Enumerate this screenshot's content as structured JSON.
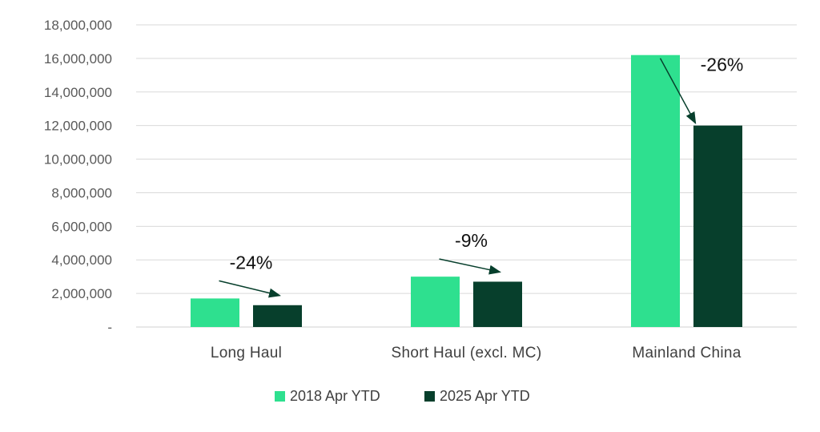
{
  "chart_data": {
    "type": "bar",
    "categories": [
      "Long Haul",
      "Short Haul (excl. MC)",
      "Mainland China"
    ],
    "series": [
      {
        "name": "2018 Apr YTD",
        "color": "#2ee08f",
        "values": [
          1700000,
          3000000,
          16200000
        ]
      },
      {
        "name": "2025 Apr YTD",
        "color": "#073f2c",
        "values": [
          1300000,
          2700000,
          12000000
        ]
      }
    ],
    "annotations": [
      "-24%",
      "-9%",
      "-26%"
    ],
    "ylim": [
      0,
      18000000
    ],
    "yticks": [
      0,
      2000000,
      4000000,
      6000000,
      8000000,
      10000000,
      12000000,
      14000000,
      16000000,
      18000000
    ],
    "ytick_labels": [
      "-",
      "2,000,000",
      "4,000,000",
      "6,000,000",
      "8,000,000",
      "10,000,000",
      "12,000,000",
      "14,000,000",
      "16,000,000",
      "18,000,000"
    ],
    "grid": true,
    "legend_position": "bottom"
  }
}
